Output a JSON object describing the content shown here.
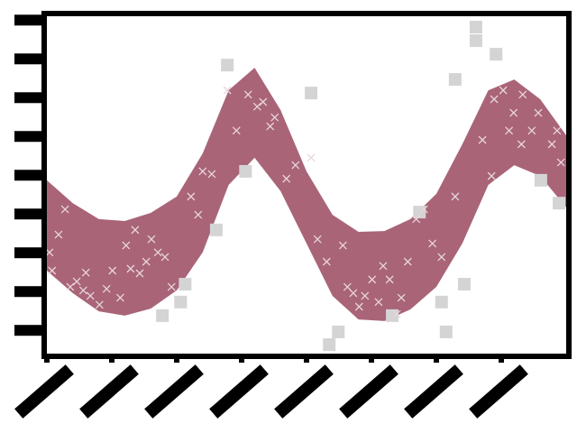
{
  "chart_data": {
    "type": "band",
    "xlim": [
      0,
      8
    ],
    "ylim": [
      -0.6,
      8.1
    ],
    "xticks": [
      0,
      1,
      2,
      3,
      4,
      5,
      6,
      7
    ],
    "yticks": [
      0,
      1,
      2,
      3,
      4,
      5,
      6,
      7,
      8
    ],
    "band": {
      "color": "#a96478",
      "x": [
        0,
        0.4,
        0.8,
        1.2,
        1.6,
        2,
        2.4,
        2.8,
        3.2,
        3.6,
        4,
        4.4,
        4.8,
        5.2,
        5.6,
        6,
        6.4,
        6.8,
        7.2,
        7.6,
        8
      ],
      "upper": [
        3.87,
        3.28,
        2.87,
        2.82,
        3.03,
        3.45,
        4.56,
        6.19,
        6.77,
        5.68,
        4.1,
        2.98,
        2.54,
        2.56,
        2.87,
        3.52,
        4.8,
        6.19,
        6.47,
        5.96,
        5.03
      ],
      "lower": [
        1.54,
        0.96,
        0.49,
        0.38,
        0.56,
        1.03,
        2.01,
        3.75,
        4.45,
        3.59,
        2.24,
        0.89,
        0.28,
        0.24,
        0.54,
        1.12,
        2.24,
        3.75,
        4.26,
        3.98,
        3.17
      ]
    },
    "outliers": {
      "color": "#d4d4d4",
      "marker": "square",
      "x": [
        2.78,
        4.07,
        6.61,
        6.61,
        6.92,
        6.29,
        3.06,
        2.61,
        2.06,
        1.78,
        2.13,
        4.35,
        4.49,
        5.32,
        5.74,
        6.08,
        6.43,
        6.15,
        7.61,
        7.89
      ],
      "y": [
        6.84,
        6.12,
        7.82,
        7.47,
        7.12,
        6.47,
        4.1,
        2.59,
        0.73,
        0.38,
        1.19,
        -0.37,
        -0.04,
        0.38,
        3.05,
        0.73,
        1.19,
        -0.04,
        3.87,
        3.28
      ]
    },
    "points": {
      "color": "#e8d6dc",
      "marker": "x",
      "x": [
        0.04,
        0.08,
        0.18,
        0.28,
        0.36,
        0.46,
        0.56,
        0.67,
        0.6,
        0.81,
        0.92,
        1.01,
        1.13,
        1.22,
        1.29,
        1.36,
        1.43,
        1.53,
        1.61,
        1.71,
        1.82,
        1.92,
        2.22,
        2.33,
        2.4,
        2.54,
        2.78,
        2.92,
        3.1,
        3.24,
        3.33,
        3.44,
        3.51,
        3.69,
        3.83,
        4.07,
        4.17,
        4.31,
        4.56,
        4.63,
        4.72,
        4.81,
        4.9,
        5.01,
        5.11,
        5.18,
        5.28,
        5.39,
        5.46,
        5.56,
        5.69,
        5.81,
        5.94,
        6.08,
        6.29,
        6.71,
        6.85,
        6.89,
        7.03,
        7.12,
        7.19,
        7.31,
        7.33,
        7.47,
        7.57,
        7.78,
        7.86,
        7.92
      ],
      "y": [
        2.01,
        1.54,
        2.47,
        3.12,
        1.12,
        1.26,
        1.03,
        0.89,
        1.49,
        0.66,
        1.07,
        1.54,
        0.84,
        2.19,
        1.59,
        2.59,
        1.47,
        1.77,
        2.35,
        2.01,
        1.89,
        1.12,
        3.45,
        2.98,
        4.1,
        4.03,
        6.19,
        5.15,
        6.08,
        5.77,
        5.89,
        5.26,
        5.49,
        3.91,
        4.26,
        4.45,
        2.35,
        1.77,
        2.19,
        1.12,
        0.96,
        0.61,
        0.89,
        1.31,
        0.73,
        1.66,
        1.31,
        0.42,
        0.84,
        1.77,
        2.87,
        3.12,
        2.24,
        1.89,
        3.45,
        4.91,
        3.98,
        5.96,
        6.19,
        5.15,
        5.61,
        4.8,
        6.08,
        5.15,
        5.61,
        4.8,
        5.15,
        4.33
      ]
    }
  }
}
